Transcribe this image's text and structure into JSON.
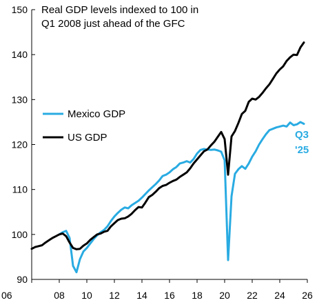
{
  "chart_data": {
    "type": "line",
    "title_lines": [
      "Real GDP levels indexed to 100 in",
      "Q1 2008 just ahead of the GFC"
    ],
    "xlabel": "",
    "ylabel": "",
    "xlim": [
      2006,
      2026
    ],
    "ylim": [
      90,
      150
    ],
    "x_ticks": [
      {
        "value": 2006,
        "label": "06"
      },
      {
        "value": 2008,
        "label": "08"
      },
      {
        "value": 2010,
        "label": "10"
      },
      {
        "value": 2012,
        "label": "12"
      },
      {
        "value": 2014,
        "label": "14"
      },
      {
        "value": 2016,
        "label": "16"
      },
      {
        "value": 2018,
        "label": "18"
      },
      {
        "value": 2020,
        "label": "20"
      },
      {
        "value": 2022,
        "label": "22"
      },
      {
        "value": 2024,
        "label": "24"
      },
      {
        "value": 2026,
        "label": "26"
      }
    ],
    "y_ticks": [
      {
        "value": 90,
        "label": "90"
      },
      {
        "value": 100,
        "label": "100"
      },
      {
        "value": 110,
        "label": "110"
      },
      {
        "value": 120,
        "label": "120"
      },
      {
        "value": 130,
        "label": "130"
      },
      {
        "value": 140,
        "label": "140"
      },
      {
        "value": 150,
        "label": "150"
      }
    ],
    "grid": false,
    "legend_position": "center-left",
    "annotation": {
      "lines": [
        "Q3",
        "'25"
      ],
      "color": "#29abe2"
    },
    "series": [
      {
        "name": "Mexico GDP",
        "color": "#29abe2",
        "points": [
          [
            2008.0,
            100.0
          ],
          [
            2008.25,
            100.5
          ],
          [
            2008.5,
            100.8
          ],
          [
            2008.75,
            99.2
          ],
          [
            2009.0,
            93.0
          ],
          [
            2009.25,
            91.6
          ],
          [
            2009.5,
            94.5
          ],
          [
            2009.75,
            96.2
          ],
          [
            2010.0,
            97.0
          ],
          [
            2010.25,
            98.0
          ],
          [
            2010.5,
            99.0
          ],
          [
            2010.75,
            99.8
          ],
          [
            2011.0,
            100.5
          ],
          [
            2011.25,
            101.0
          ],
          [
            2011.5,
            101.8
          ],
          [
            2011.75,
            103.0
          ],
          [
            2012.0,
            104.0
          ],
          [
            2012.25,
            104.8
          ],
          [
            2012.5,
            105.5
          ],
          [
            2012.75,
            106.0
          ],
          [
            2013.0,
            105.8
          ],
          [
            2013.25,
            106.5
          ],
          [
            2013.5,
            107.0
          ],
          [
            2013.75,
            107.5
          ],
          [
            2014.0,
            108.2
          ],
          [
            2014.25,
            109.0
          ],
          [
            2014.5,
            109.8
          ],
          [
            2014.75,
            110.5
          ],
          [
            2015.0,
            111.2
          ],
          [
            2015.25,
            112.0
          ],
          [
            2015.5,
            113.0
          ],
          [
            2015.75,
            113.3
          ],
          [
            2016.0,
            113.8
          ],
          [
            2016.25,
            114.5
          ],
          [
            2016.5,
            115.0
          ],
          [
            2016.75,
            115.8
          ],
          [
            2017.0,
            116.0
          ],
          [
            2017.25,
            116.3
          ],
          [
            2017.5,
            116.0
          ],
          [
            2017.75,
            116.8
          ],
          [
            2018.0,
            118.0
          ],
          [
            2018.25,
            118.8
          ],
          [
            2018.5,
            119.0
          ],
          [
            2018.75,
            118.9
          ],
          [
            2019.0,
            118.8
          ],
          [
            2019.25,
            118.9
          ],
          [
            2019.5,
            118.7
          ],
          [
            2019.75,
            118.4
          ],
          [
            2020.0,
            116.5
          ],
          [
            2020.25,
            94.3
          ],
          [
            2020.5,
            108.5
          ],
          [
            2020.75,
            113.5
          ],
          [
            2021.0,
            114.5
          ],
          [
            2021.25,
            115.2
          ],
          [
            2021.5,
            114.6
          ],
          [
            2021.75,
            115.8
          ],
          [
            2022.0,
            117.3
          ],
          [
            2022.25,
            118.5
          ],
          [
            2022.5,
            120.0
          ],
          [
            2022.75,
            121.2
          ],
          [
            2023.0,
            122.3
          ],
          [
            2023.25,
            123.2
          ],
          [
            2023.5,
            123.5
          ],
          [
            2023.75,
            123.8
          ],
          [
            2024.0,
            124.0
          ],
          [
            2024.25,
            124.2
          ],
          [
            2024.5,
            124.0
          ],
          [
            2024.75,
            124.9
          ],
          [
            2025.0,
            124.3
          ],
          [
            2025.25,
            124.5
          ],
          [
            2025.5,
            125.0
          ],
          [
            2025.75,
            124.6
          ]
        ]
      },
      {
        "name": "US GDP",
        "color": "#000000",
        "points": [
          [
            2006.0,
            96.8
          ],
          [
            2006.25,
            97.2
          ],
          [
            2006.5,
            97.4
          ],
          [
            2006.75,
            97.6
          ],
          [
            2007.0,
            98.2
          ],
          [
            2007.25,
            98.7
          ],
          [
            2007.5,
            99.2
          ],
          [
            2007.75,
            99.6
          ],
          [
            2008.0,
            100.0
          ],
          [
            2008.25,
            100.2
          ],
          [
            2008.5,
            99.6
          ],
          [
            2008.75,
            98.2
          ],
          [
            2009.0,
            97.0
          ],
          [
            2009.25,
            96.7
          ],
          [
            2009.5,
            96.8
          ],
          [
            2009.75,
            97.5
          ],
          [
            2010.0,
            98.0
          ],
          [
            2010.25,
            98.8
          ],
          [
            2010.5,
            99.4
          ],
          [
            2010.75,
            100.0
          ],
          [
            2011.0,
            100.2
          ],
          [
            2011.25,
            100.6
          ],
          [
            2011.5,
            100.8
          ],
          [
            2011.75,
            101.8
          ],
          [
            2012.0,
            102.5
          ],
          [
            2012.25,
            103.2
          ],
          [
            2012.5,
            103.5
          ],
          [
            2012.75,
            103.6
          ],
          [
            2013.0,
            104.0
          ],
          [
            2013.25,
            104.6
          ],
          [
            2013.5,
            105.4
          ],
          [
            2013.75,
            106.1
          ],
          [
            2014.0,
            106.0
          ],
          [
            2014.25,
            107.1
          ],
          [
            2014.5,
            108.3
          ],
          [
            2014.75,
            108.8
          ],
          [
            2015.0,
            109.5
          ],
          [
            2015.25,
            110.3
          ],
          [
            2015.5,
            110.8
          ],
          [
            2015.75,
            111.0
          ],
          [
            2016.0,
            111.5
          ],
          [
            2016.25,
            111.9
          ],
          [
            2016.5,
            112.2
          ],
          [
            2016.75,
            112.8
          ],
          [
            2017.0,
            113.3
          ],
          [
            2017.25,
            113.8
          ],
          [
            2017.5,
            114.7
          ],
          [
            2017.75,
            115.8
          ],
          [
            2018.0,
            116.7
          ],
          [
            2018.25,
            117.6
          ],
          [
            2018.5,
            118.5
          ],
          [
            2018.75,
            118.9
          ],
          [
            2019.0,
            119.8
          ],
          [
            2019.25,
            120.6
          ],
          [
            2019.5,
            121.7
          ],
          [
            2019.75,
            122.8
          ],
          [
            2020.0,
            121.2
          ],
          [
            2020.25,
            113.3
          ],
          [
            2020.5,
            121.8
          ],
          [
            2020.75,
            123.0
          ],
          [
            2021.0,
            124.8
          ],
          [
            2021.25,
            126.8
          ],
          [
            2021.5,
            127.5
          ],
          [
            2021.75,
            129.5
          ],
          [
            2022.0,
            130.2
          ],
          [
            2022.25,
            130.0
          ],
          [
            2022.5,
            130.6
          ],
          [
            2022.75,
            131.5
          ],
          [
            2023.0,
            132.5
          ],
          [
            2023.25,
            133.4
          ],
          [
            2023.5,
            134.6
          ],
          [
            2023.75,
            135.8
          ],
          [
            2024.0,
            136.7
          ],
          [
            2024.25,
            137.4
          ],
          [
            2024.5,
            138.6
          ],
          [
            2024.75,
            139.4
          ],
          [
            2025.0,
            140.0
          ],
          [
            2025.25,
            139.9
          ],
          [
            2025.5,
            141.6
          ],
          [
            2025.75,
            142.7
          ]
        ]
      }
    ]
  }
}
